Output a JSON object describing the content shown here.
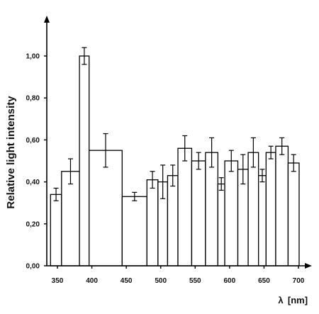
{
  "chart_data": {
    "type": "bar",
    "ylabel": "Relative light intensity",
    "xlabel_symbol": "λ",
    "xlabel_unit": "[nm]",
    "ylim": [
      0,
      1.2
    ],
    "xlim": [
      330,
      720
    ],
    "y_ticks": [
      {
        "value": 0.0,
        "label": "0,00"
      },
      {
        "value": 0.2,
        "label": "0,20"
      },
      {
        "value": 0.4,
        "label": "0,40"
      },
      {
        "value": 0.6,
        "label": "0,60"
      },
      {
        "value": 0.8,
        "label": "0,80"
      },
      {
        "value": 1.0,
        "label": "1,00"
      }
    ],
    "x_ticks": [
      {
        "value": 350,
        "label": "350"
      },
      {
        "value": 400,
        "label": "400"
      },
      {
        "value": 450,
        "label": "450"
      },
      {
        "value": 500,
        "label": "500"
      },
      {
        "value": 550,
        "label": "550"
      },
      {
        "value": 600,
        "label": "600"
      },
      {
        "value": 650,
        "label": "650"
      },
      {
        "value": 700,
        "label": "700"
      }
    ],
    "bars": [
      {
        "x_start": 340,
        "x_end": 356,
        "value": 0.34,
        "error": 0.03
      },
      {
        "x_start": 356,
        "x_end": 382,
        "value": 0.45,
        "error": 0.06
      },
      {
        "x_start": 382,
        "x_end": 396,
        "value": 1.0,
        "error": 0.04
      },
      {
        "x_start": 396,
        "x_end": 444,
        "value": 0.55,
        "error": 0.08
      },
      {
        "x_start": 444,
        "x_end": 480,
        "value": 0.33,
        "error": 0.02
      },
      {
        "x_start": 480,
        "x_end": 496,
        "value": 0.41,
        "error": 0.04
      },
      {
        "x_start": 496,
        "x_end": 510,
        "value": 0.4,
        "error": 0.08
      },
      {
        "x_start": 510,
        "x_end": 525,
        "value": 0.43,
        "error": 0.05
      },
      {
        "x_start": 525,
        "x_end": 545,
        "value": 0.56,
        "error": 0.06
      },
      {
        "x_start": 545,
        "x_end": 565,
        "value": 0.5,
        "error": 0.04
      },
      {
        "x_start": 565,
        "x_end": 583,
        "value": 0.54,
        "error": 0.07
      },
      {
        "x_start": 583,
        "x_end": 593,
        "value": 0.39,
        "error": 0.03
      },
      {
        "x_start": 593,
        "x_end": 612,
        "value": 0.5,
        "error": 0.05
      },
      {
        "x_start": 612,
        "x_end": 627,
        "value": 0.46,
        "error": 0.07
      },
      {
        "x_start": 627,
        "x_end": 642,
        "value": 0.54,
        "error": 0.07
      },
      {
        "x_start": 642,
        "x_end": 653,
        "value": 0.43,
        "error": 0.03
      },
      {
        "x_start": 653,
        "x_end": 667,
        "value": 0.54,
        "error": 0.03
      },
      {
        "x_start": 667,
        "x_end": 685,
        "value": 0.57,
        "error": 0.04
      },
      {
        "x_start": 685,
        "x_end": 701,
        "value": 0.49,
        "error": 0.04
      }
    ],
    "grid": false,
    "legend": "none"
  }
}
